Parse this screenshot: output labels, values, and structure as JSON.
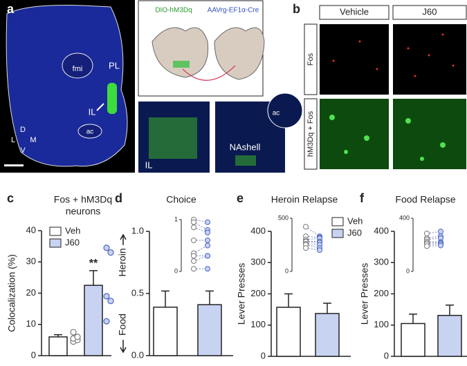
{
  "figure": {
    "panel_a": {
      "label": "a",
      "regions": [
        "fmi",
        "PL",
        "IL",
        "ac"
      ],
      "compass": [
        "D",
        "L",
        "M",
        "V"
      ]
    },
    "schematic": {
      "virus_1": "DIO-hM3Dq",
      "virus_2": "AAVrg-EF1α-Cre"
    },
    "micrographs": [
      "IL",
      "ac",
      "NAshell"
    ],
    "panel_b": {
      "label": "b",
      "columns": [
        "Vehicle",
        "J60"
      ],
      "rows": [
        "Fos",
        "hM3Dq + Fos"
      ]
    }
  },
  "chart_data": [
    {
      "type": "bar",
      "panel_label": "c",
      "title": [
        "Fos + hM3Dq",
        "neurons"
      ],
      "ylabel": "Colocalization (%)",
      "ylim": [
        0,
        40
      ],
      "yticks": [
        0,
        10,
        20,
        30,
        40
      ],
      "annotation": "**",
      "series": [
        {
          "name": "Veh",
          "color": "#ffffff",
          "values": [
            6
          ],
          "errors": [
            0.7
          ],
          "points": [
            4.5,
            5,
            5.5,
            6,
            7.5
          ]
        },
        {
          "name": "J60",
          "color": "#c8d3f2",
          "values": [
            22.5
          ],
          "errors": [
            4.7
          ],
          "points": [
            11,
            17.5,
            19,
            33,
            34.5
          ]
        }
      ]
    },
    {
      "type": "bar",
      "panel_label": "d",
      "title": [
        "Choice"
      ],
      "ylabel": [
        "Heroin",
        "Food"
      ],
      "ylim": [
        0,
        1
      ],
      "yticks": [
        {
          "value": 0,
          "label": "0.0"
        },
        {
          "value": 0.5,
          "label": "0.5"
        },
        {
          "value": 1,
          "label": "1.0"
        }
      ],
      "series": [
        {
          "color": "#ffffff",
          "values": [
            0.39
          ],
          "errors": [
            0.13
          ]
        },
        {
          "color": "#c8d3f2",
          "values": [
            0.41
          ],
          "errors": [
            0.11
          ]
        }
      ],
      "inset": {
        "ylim": [
          0,
          1
        ],
        "yticks": [
          0,
          1
        ],
        "series": [
          {
            "values": [
              1.0,
              0.95,
              0.85,
              0.6,
              0.35,
              0.3,
              0.2,
              0.05
            ]
          },
          {
            "values": [
              0.95,
              0.8,
              0.75,
              0.6,
              0.5,
              0.3,
              0.3,
              0.05
            ]
          }
        ]
      }
    },
    {
      "type": "bar",
      "panel_label": "e",
      "title": [
        "Heroin Relapse"
      ],
      "ylabel": "Lever Presses",
      "ylim": [
        0,
        400
      ],
      "yticks": [
        0,
        100,
        200,
        300,
        400
      ],
      "series": [
        {
          "name": "Veh",
          "color": "#ffffff",
          "values": [
            157
          ],
          "errors": [
            43
          ]
        },
        {
          "name": "J60",
          "color": "#c8d3f2",
          "values": [
            137
          ],
          "errors": [
            33
          ]
        }
      ],
      "inset": {
        "ylim": [
          0,
          500
        ],
        "yticks": [
          0,
          500
        ],
        "series": [
          {
            "values": [
              420,
              330,
              300,
              285,
              280,
              260,
              250,
              220
            ]
          },
          {
            "values": [
              330,
              320,
              310,
              280,
              270,
              250,
              220,
              200
            ]
          }
        ]
      }
    },
    {
      "type": "bar",
      "panel_label": "f",
      "title": [
        "Food Relapse"
      ],
      "ylabel": "Lever Presses",
      "ylim": [
        0,
        400
      ],
      "yticks": [
        0,
        100,
        200,
        300,
        400
      ],
      "series": [
        {
          "color": "#ffffff",
          "values": [
            105
          ],
          "errors": [
            30
          ]
        },
        {
          "color": "#c8d3f2",
          "values": [
            131
          ],
          "errors": [
            33
          ]
        }
      ],
      "inset": {
        "ylim": [
          0,
          400
        ],
        "yticks": [
          0,
          400
        ],
        "series": [
          {
            "values": [
              285,
              250,
              240,
              225,
              215,
              205,
              190
            ]
          },
          {
            "values": [
              300,
              265,
              250,
              220,
              215,
              205,
              195
            ]
          }
        ]
      }
    }
  ]
}
